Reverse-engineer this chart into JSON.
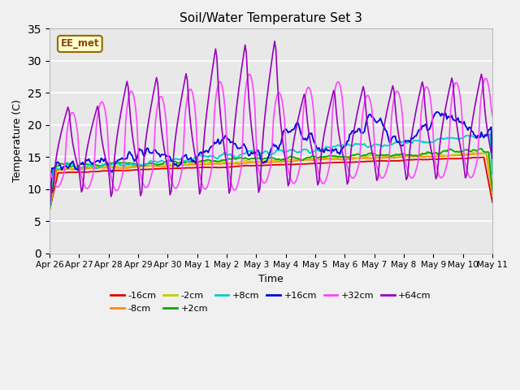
{
  "title": "Soil/Water Temperature Set 3",
  "xlabel": "Time",
  "ylabel": "Temperature (C)",
  "ylim": [
    0,
    35
  ],
  "yticks": [
    0,
    5,
    10,
    15,
    20,
    25,
    30,
    35
  ],
  "fig_bg": "#f0f0f0",
  "plot_bg": "#e8e8e8",
  "annotation_text": "EE_met",
  "annotation_bg": "#ffffcc",
  "annotation_border": "#996600",
  "series_colors": {
    "-16cm": "#dd0000",
    "-8cm": "#ff8800",
    "-2cm": "#cccc00",
    "+2cm": "#00aa00",
    "+8cm": "#00cccc",
    "+16cm": "#0000dd",
    "+32cm": "#ff44ff",
    "+64cm": "#9900bb"
  },
  "x_labels": [
    "Apr 26",
    "Apr 27",
    "Apr 28",
    "Apr 29",
    "Apr 30",
    "May 1",
    "May 2",
    "May 3",
    "May 4",
    "May 5",
    "May 6",
    "May 7",
    "May 8",
    "May 9",
    "May 10",
    "May 11"
  ],
  "legend_entries": [
    "-16cm",
    "-8cm",
    "-2cm",
    "+2cm",
    "+8cm",
    "+16cm",
    "+32cm",
    "+64cm"
  ]
}
